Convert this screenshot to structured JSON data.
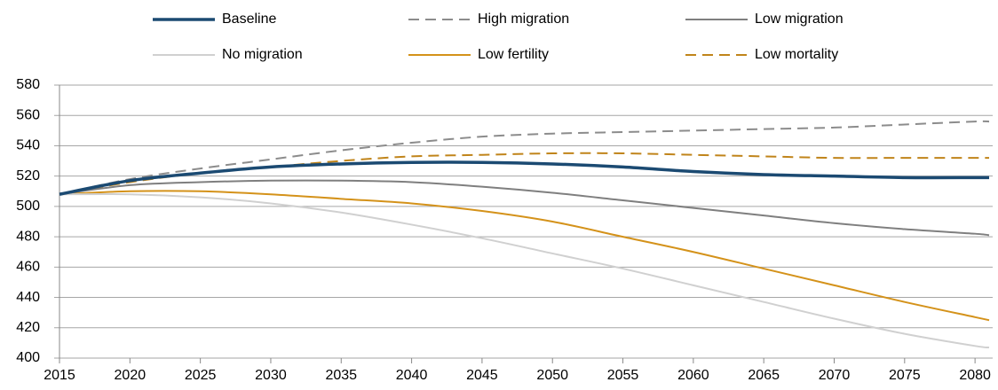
{
  "chart_data": {
    "type": "line",
    "x": [
      2015,
      2020,
      2025,
      2030,
      2035,
      2040,
      2045,
      2050,
      2055,
      2060,
      2065,
      2070,
      2075,
      2080,
      2081
    ],
    "series": [
      {
        "name": "Baseline",
        "color": "#1b4a72",
        "style": "solid",
        "values": [
          508,
          517,
          522,
          526,
          528,
          529,
          529,
          528,
          526,
          523,
          521,
          520,
          519,
          519,
          519
        ]
      },
      {
        "name": "High migration",
        "color": "#8c8c8c",
        "style": "dashed",
        "values": [
          508,
          518,
          525,
          531,
          537,
          542,
          546,
          548,
          549,
          550,
          551,
          552,
          554,
          556,
          556
        ]
      },
      {
        "name": "Low migration",
        "color": "#7f7f7f",
        "style": "solid",
        "values": [
          508,
          514,
          516,
          517,
          517,
          516,
          513,
          509,
          504,
          499,
          494,
          489,
          485,
          482,
          481
        ]
      },
      {
        "name": "No migration",
        "color": "#d0d0d0",
        "style": "solid",
        "values": [
          508,
          508,
          506,
          502,
          496,
          488,
          479,
          469,
          459,
          448,
          437,
          426,
          416,
          408,
          407
        ]
      },
      {
        "name": "Low fertility",
        "color": "#d4921a",
        "style": "solid",
        "values": [
          508,
          510,
          510,
          508,
          505,
          502,
          497,
          490,
          480,
          470,
          459,
          448,
          437,
          427,
          425
        ]
      },
      {
        "name": "Low mortality",
        "color": "#c0841a",
        "style": "dashed",
        "values": [
          508,
          516,
          522,
          526,
          530,
          533,
          534,
          535,
          535,
          534,
          533,
          532,
          532,
          532,
          532
        ]
      }
    ],
    "xlim": [
      2015,
      2081
    ],
    "xticks": [
      2015,
      2020,
      2025,
      2030,
      2035,
      2040,
      2045,
      2050,
      2055,
      2060,
      2065,
      2070,
      2075,
      2080
    ],
    "ylim": [
      400,
      580
    ],
    "yticks": [
      400,
      420,
      440,
      460,
      480,
      500,
      520,
      540,
      560,
      580
    ],
    "grid": true,
    "legend": "top"
  }
}
